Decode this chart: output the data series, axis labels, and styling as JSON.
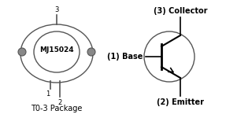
{
  "bg_color": "#ffffff",
  "left_panel": {
    "label": "MJ15024",
    "package_label": "T0-3 Package",
    "pin1_label": "1",
    "pin2_label": "2",
    "pin3_label": "3"
  },
  "right_panel": {
    "collector_label": "(3) Collector",
    "base_label": "(1) Base",
    "emitter_label": "(2) Emitter"
  },
  "line_color": "#555555",
  "text_color": "#000000",
  "font_size_small": 7,
  "font_size_pkg": 7,
  "font_size_pin": 6
}
